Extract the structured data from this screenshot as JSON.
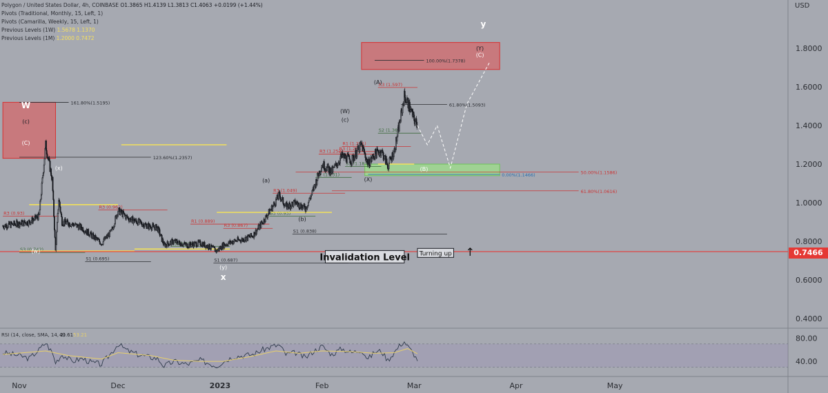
{
  "window": {
    "symbol_line": "Polygon / United States Dollar, 4h, COINBASE",
    "ohlc": "O1.3865 H1.4139 L1.3813 C1.4063 +0.0199 (+1.44%)",
    "indicators": [
      "Pivots (Traditional, Monthly, 15, Left, 1)",
      "Pivots (Camarilla, Weekly, 15, Left, 1)",
      "Previous Levels (1W)",
      "Previous Levels (1M)"
    ],
    "prev_levels_1w": [
      "1.5678",
      "1.1370"
    ],
    "prev_levels_1m": [
      "1.2000",
      "0.7472"
    ]
  },
  "colors": {
    "background": "#a6a9b1",
    "candle": "#15171c",
    "red_zone": "#e05a5a",
    "green_zone": "#9ce08a",
    "yellow": "#f2e15a",
    "rsi_line": "#2d3a4a",
    "rsi_ma": "#e8d06a",
    "price_tag": "#e53935"
  },
  "chart_data": {
    "type": "line",
    "subtype": "candlestick",
    "ylabel": "USD",
    "ylim": [
      0.3,
      2.0
    ],
    "y_ticks": [
      "1.8000",
      "1.6000",
      "1.4000",
      "1.2000",
      "1.0000",
      "0.8000",
      "0.6000",
      "0.4000"
    ],
    "y_tick_values": [
      1.8,
      1.6,
      1.4,
      1.2,
      1.0,
      0.8,
      0.6,
      0.4
    ],
    "x_ticks": [
      "Nov",
      "Dec",
      "2023",
      "Feb",
      "Mar",
      "Apr",
      "May"
    ],
    "x_tick_days": [
      0,
      30,
      61,
      92,
      120,
      151,
      181
    ],
    "x_range_days": [
      -5,
      190
    ],
    "current_price": "0.7466",
    "current_price_value": 0.7466,
    "price_path": [
      [
        -5,
        0.88
      ],
      [
        3,
        0.9
      ],
      [
        6,
        0.93
      ],
      [
        8,
        1.3
      ],
      [
        10,
        1.12
      ],
      [
        11,
        0.75
      ],
      [
        12,
        1.02
      ],
      [
        13,
        0.9
      ],
      [
        16,
        0.89
      ],
      [
        19,
        0.87
      ],
      [
        22,
        0.83
      ],
      [
        25,
        0.79
      ],
      [
        28,
        0.85
      ],
      [
        30,
        0.96
      ],
      [
        33,
        0.92
      ],
      [
        36,
        0.9
      ],
      [
        39,
        0.88
      ],
      [
        42,
        0.87
      ],
      [
        44,
        0.78
      ],
      [
        47,
        0.8
      ],
      [
        51,
        0.78
      ],
      [
        55,
        0.79
      ],
      [
        58,
        0.77
      ],
      [
        60,
        0.75
      ],
      [
        62,
        0.78
      ],
      [
        65,
        0.8
      ],
      [
        68,
        0.81
      ],
      [
        71,
        0.83
      ],
      [
        74,
        0.9
      ],
      [
        77,
        0.98
      ],
      [
        79,
        1.04
      ],
      [
        81,
        0.98
      ],
      [
        84,
        1.0
      ],
      [
        87,
        0.97
      ],
      [
        89,
        1.05
      ],
      [
        92,
        1.2
      ],
      [
        95,
        1.16
      ],
      [
        98,
        1.24
      ],
      [
        101,
        1.22
      ],
      [
        104,
        1.3
      ],
      [
        106,
        1.2
      ],
      [
        108,
        1.25
      ],
      [
        110,
        1.27
      ],
      [
        112,
        1.19
      ],
      [
        114,
        1.27
      ],
      [
        116,
        1.45
      ],
      [
        117,
        1.55
      ],
      [
        118,
        1.52
      ],
      [
        120,
        1.43
      ],
      [
        121,
        1.4
      ]
    ],
    "projection": {
      "name": "projection",
      "points": [
        [
          121,
          1.4
        ],
        [
          124,
          1.3
        ],
        [
          127,
          1.4
        ],
        [
          131,
          1.18
        ],
        [
          136,
          1.51
        ],
        [
          143,
          1.73
        ]
      ]
    },
    "zones": [
      {
        "label": "W zone",
        "x": [
          -5,
          11
        ],
        "y": [
          1.23,
          1.52
        ],
        "color": "#e05a5a"
      },
      {
        "label": "Y target",
        "x": [
          104,
          146
        ],
        "y": [
          1.69,
          1.83
        ],
        "color": "#e05a5a"
      },
      {
        "label": "B support",
        "x": [
          105,
          146
        ],
        "y": [
          1.14,
          1.2
        ],
        "color": "#9ce08a"
      }
    ],
    "fib_lines": [
      {
        "text": "161.80%(1.5195)",
        "value": 1.5195,
        "x": [
          0,
          15
        ],
        "color": "#2a2c31"
      },
      {
        "text": "123.60%(1.2357)",
        "value": 1.2357,
        "x": [
          0,
          40
        ],
        "color": "#2a2c31"
      },
      {
        "text": "100.00%(1.7378)",
        "value": 1.7378,
        "x": [
          108,
          123
        ],
        "color": "#2a2c31"
      },
      {
        "text": "61.80%(1.5093)",
        "value": 1.5093,
        "x": [
          116,
          130
        ],
        "color": "#2a2c31"
      },
      {
        "text": "50.00%(1.1586)",
        "value": 1.1586,
        "x": [
          84,
          170
        ],
        "color": "#cc3333"
      },
      {
        "text": "61.80%(1.0616)",
        "value": 1.0616,
        "x": [
          95,
          170
        ],
        "color": "#cc3333"
      },
      {
        "text": "0.00%(1.1466)",
        "value": 1.1466,
        "x": [
          106,
          146
        ],
        "color": "#2a6fb0"
      }
    ],
    "pivot_levels": [
      {
        "text": "R3 (1.597)",
        "value": 1.597,
        "x": [
          109,
          121
        ],
        "color": "#cc3333"
      },
      {
        "text": "S2 (1.36)",
        "value": 1.36,
        "x": [
          109,
          122
        ],
        "color": "#3d6b3d"
      },
      {
        "text": "R1 (1.291)",
        "value": 1.291,
        "x": [
          98,
          119
        ],
        "color": "#cc3333"
      },
      {
        "text": "R3 (1.252)",
        "value": 1.252,
        "x": [
          91,
          109
        ],
        "color": "#cc3333"
      },
      {
        "text": "R3 (1.265)",
        "value": 1.265,
        "x": [
          97,
          108
        ],
        "color": "#cc3333"
      },
      {
        "text": "S1 (1.187)",
        "value": 1.187,
        "x": [
          99,
          110
        ],
        "color": "#3d6b3d"
      },
      {
        "text": "S2 (1.131)",
        "value": 1.131,
        "x": [
          90,
          101
        ],
        "color": "#3d6b3d"
      },
      {
        "text": "R3 (1.049)",
        "value": 1.049,
        "x": [
          77,
          99
        ],
        "color": "#cc3333"
      },
      {
        "text": "S3 (0.93)",
        "value": 0.93,
        "x": [
          76,
          90
        ],
        "color": "#3d6b3d"
      },
      {
        "text": "S1 (0.838)",
        "value": 0.838,
        "x": [
          83,
          130
        ],
        "color": "#2a2c31"
      },
      {
        "text": "R3 (0.867)",
        "value": 0.867,
        "x": [
          62,
          77
        ],
        "color": "#cc3333"
      },
      {
        "text": "R1 (0.889)",
        "value": 0.889,
        "x": [
          52,
          76
        ],
        "color": "#cc3333"
      },
      {
        "text": "S3 (0.774)",
        "value": 0.774,
        "x": [
          46,
          64
        ],
        "color": "#3d6b3d"
      },
      {
        "text": "S1 (0.687)",
        "value": 0.687,
        "x": [
          59,
          100
        ],
        "color": "#2a2c31"
      },
      {
        "text": "R3 (0.962)",
        "value": 0.962,
        "x": [
          24,
          45
        ],
        "color": "#cc3333"
      },
      {
        "text": "R3 (0.93)",
        "value": 0.93,
        "x": [
          -5,
          12
        ],
        "color": "#cc3333"
      },
      {
        "text": "S1 (0.695)",
        "value": 0.695,
        "x": [
          20,
          40
        ],
        "color": "#2a2c31"
      },
      {
        "text": "S3 (0.742)",
        "value": 0.742,
        "x": [
          0,
          20
        ],
        "color": "#3d6b3d"
      }
    ],
    "yellow_levels": [
      {
        "value": 1.3,
        "x": [
          31,
          63
        ]
      },
      {
        "value": 1.2,
        "x": [
          109,
          120
        ]
      },
      {
        "value": 0.95,
        "x": [
          60,
          95
        ]
      },
      {
        "value": 0.99,
        "x": [
          3,
          30
        ]
      },
      {
        "value": 0.76,
        "x": [
          35,
          64
        ]
      },
      {
        "value": 0.75,
        "x": [
          0,
          35
        ]
      }
    ],
    "annotations": [
      {
        "text": "W",
        "x": 2,
        "y": 1.49,
        "color": "#ffffff",
        "bold": true
      },
      {
        "text": "(c)",
        "x": 2,
        "y": 1.41,
        "color": "#1a1c22"
      },
      {
        "text": "(C)",
        "x": 2,
        "y": 1.3,
        "color": "#ffffff"
      },
      {
        "text": "(x)",
        "x": 12,
        "y": 1.17,
        "color": "#ffffff"
      },
      {
        "text": "(w)",
        "x": 5,
        "y": 0.74,
        "color": "#ffffff"
      },
      {
        "text": "(y)",
        "x": 62,
        "y": 0.655,
        "color": "#ffffff"
      },
      {
        "text": "x",
        "x": 62,
        "y": 0.6,
        "color": "#ffffff",
        "bold": true
      },
      {
        "text": "(a)",
        "x": 75,
        "y": 1.105,
        "color": "#1a1c22"
      },
      {
        "text": "(b)",
        "x": 86,
        "y": 0.905,
        "color": "#1a1c22"
      },
      {
        "text": "(W)",
        "x": 99,
        "y": 1.465,
        "color": "#1a1c22"
      },
      {
        "text": "(c)",
        "x": 99,
        "y": 1.42,
        "color": "#1a1c22"
      },
      {
        "text": "(A)",
        "x": 109,
        "y": 1.615,
        "color": "#1a1c22"
      },
      {
        "text": "(X)",
        "x": 106,
        "y": 1.11,
        "color": "#1a1c22"
      },
      {
        "text": "(B)",
        "x": 123,
        "y": 1.165,
        "color": "#ffffff"
      },
      {
        "text": "(Y)",
        "x": 140,
        "y": 1.79,
        "color": "#1a1c22"
      },
      {
        "text": "(C)",
        "x": 140,
        "y": 1.755,
        "color": "#ffffff"
      },
      {
        "text": "y",
        "x": 141,
        "y": 1.91,
        "color": "#ffffff",
        "bold": true
      }
    ],
    "boxed_labels": [
      {
        "text": "Invalidation Level",
        "x": [
          93,
          117
        ],
        "y": 0.72,
        "size": "large"
      },
      {
        "text": "Turning up",
        "x": [
          121,
          132
        ],
        "y": 0.74,
        "size": "small"
      }
    ],
    "arrow": {
      "symbol": "↑",
      "x": 137,
      "y": 0.74
    },
    "invalidation_line": {
      "value": 0.7466,
      "color": "#e53935"
    },
    "rsi": {
      "title": "RSI (14, close, SMA, 14, 2)",
      "value": "40.61",
      "ma_value": "53.21",
      "ylim": [
        20,
        90
      ],
      "y_ticks": [
        "80.00",
        "40.00"
      ],
      "y_tick_values": [
        80,
        40
      ],
      "band": [
        30,
        70
      ],
      "points": [
        [
          -5,
          55
        ],
        [
          0,
          50
        ],
        [
          3,
          45
        ],
        [
          6,
          60
        ],
        [
          8,
          72
        ],
        [
          10,
          55
        ],
        [
          11,
          38
        ],
        [
          13,
          52
        ],
        [
          16,
          40
        ],
        [
          19,
          45
        ],
        [
          22,
          38
        ],
        [
          25,
          35
        ],
        [
          28,
          55
        ],
        [
          30,
          70
        ],
        [
          33,
          58
        ],
        [
          36,
          52
        ],
        [
          39,
          48
        ],
        [
          42,
          45
        ],
        [
          44,
          32
        ],
        [
          47,
          40
        ],
        [
          51,
          35
        ],
        [
          55,
          42
        ],
        [
          58,
          36
        ],
        [
          60,
          32
        ],
        [
          62,
          40
        ],
        [
          65,
          48
        ],
        [
          68,
          50
        ],
        [
          71,
          52
        ],
        [
          74,
          60
        ],
        [
          77,
          66
        ],
        [
          79,
          68
        ],
        [
          81,
          52
        ],
        [
          84,
          55
        ],
        [
          87,
          46
        ],
        [
          89,
          56
        ],
        [
          92,
          66
        ],
        [
          95,
          52
        ],
        [
          98,
          62
        ],
        [
          101,
          55
        ],
        [
          104,
          60
        ],
        [
          106,
          44
        ],
        [
          108,
          56
        ],
        [
          110,
          58
        ],
        [
          112,
          42
        ],
        [
          114,
          56
        ],
        [
          116,
          70
        ],
        [
          117,
          74
        ],
        [
          118,
          66
        ],
        [
          120,
          52
        ],
        [
          121,
          40.61
        ]
      ],
      "ma_points": [
        [
          -5,
          52
        ],
        [
          8,
          58
        ],
        [
          15,
          50
        ],
        [
          25,
          44
        ],
        [
          30,
          55
        ],
        [
          40,
          50
        ],
        [
          47,
          42
        ],
        [
          55,
          40
        ],
        [
          62,
          40
        ],
        [
          70,
          48
        ],
        [
          78,
          58
        ],
        [
          85,
          54
        ],
        [
          92,
          58
        ],
        [
          100,
          57
        ],
        [
          108,
          54
        ],
        [
          114,
          55
        ],
        [
          118,
          62
        ],
        [
          121,
          53.21
        ]
      ]
    }
  }
}
